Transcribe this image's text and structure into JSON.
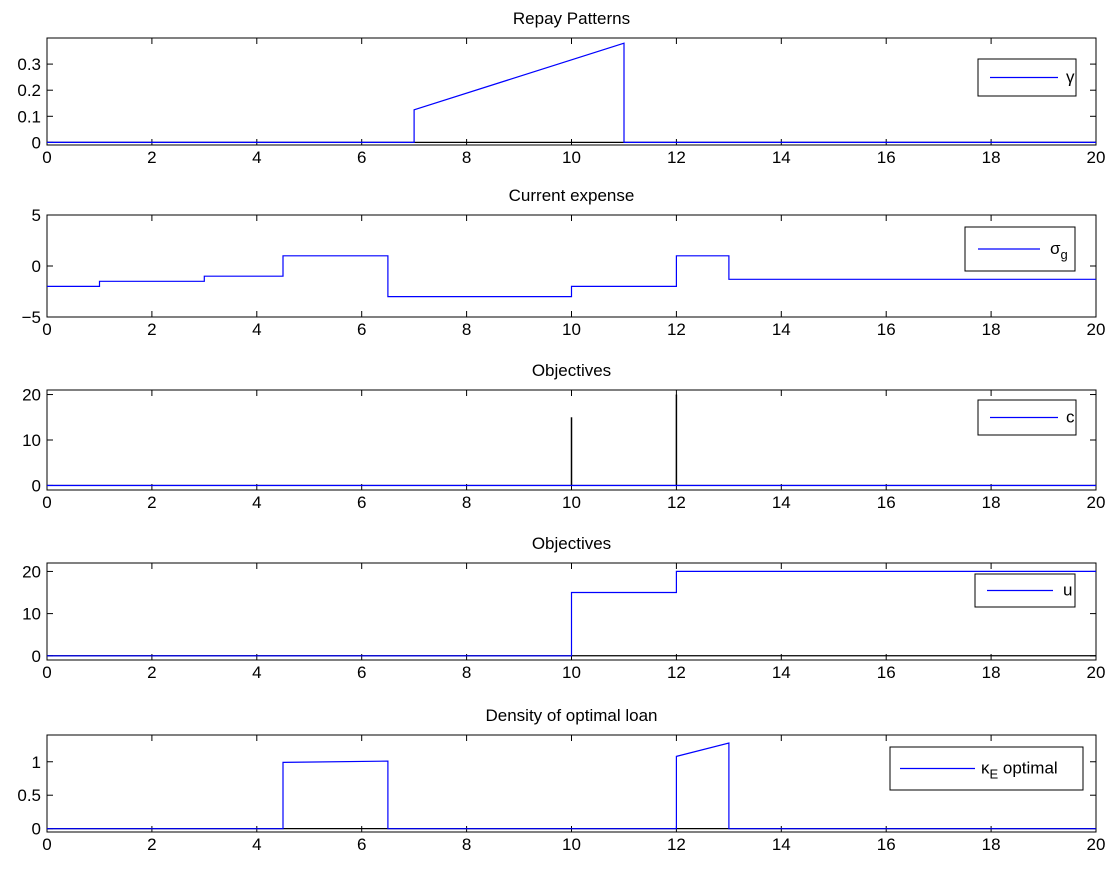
{
  "chart_data": [
    {
      "type": "line",
      "title": "Repay Patterns",
      "xlim": [
        0,
        20
      ],
      "ylim": [
        -0.01,
        0.4
      ],
      "xticks": [
        "0",
        "2",
        "4",
        "6",
        "8",
        "10",
        "12",
        "14",
        "16",
        "18",
        "20"
      ],
      "yticks": [
        {
          "value": 0,
          "label": "0"
        },
        {
          "value": 0.1,
          "label": "0.1"
        },
        {
          "value": 0.2,
          "label": "0.2"
        },
        {
          "value": 0.3,
          "label": "0.3"
        }
      ],
      "legend_position": "right",
      "baseline": 0,
      "series": [
        {
          "name": "γ",
          "color": "#0000ff",
          "points": [
            [
              0,
              0
            ],
            [
              7,
              0
            ],
            [
              7,
              0.125
            ],
            [
              11,
              0.38
            ],
            [
              11,
              0
            ],
            [
              20,
              0
            ]
          ]
        }
      ]
    },
    {
      "type": "line",
      "title": "Current expense",
      "xlim": [
        0,
        20
      ],
      "ylim": [
        -5,
        5
      ],
      "xticks": [
        "0",
        "2",
        "4",
        "6",
        "8",
        "10",
        "12",
        "14",
        "16",
        "18",
        "20"
      ],
      "yticks": [
        {
          "value": -5,
          "label": "−5"
        },
        {
          "value": 0,
          "label": "0"
        },
        {
          "value": 5,
          "label": "5"
        }
      ],
      "legend_position": "right",
      "series": [
        {
          "name": "σ",
          "name_sub": "g",
          "color": "#0000ff",
          "points": [
            [
              0,
              -2
            ],
            [
              1,
              -2
            ],
            [
              1,
              -1.5
            ],
            [
              3,
              -1.5
            ],
            [
              3,
              -1
            ],
            [
              4.5,
              -1
            ],
            [
              4.5,
              1
            ],
            [
              6.5,
              1
            ],
            [
              6.5,
              -3
            ],
            [
              10,
              -3
            ],
            [
              10,
              -2
            ],
            [
              12,
              -2
            ],
            [
              12,
              1
            ],
            [
              13,
              1
            ],
            [
              13,
              -1.3
            ],
            [
              20,
              -1.3
            ]
          ]
        }
      ]
    },
    {
      "type": "line",
      "title": "Objectives",
      "xlim": [
        0,
        20
      ],
      "ylim": [
        -1,
        21
      ],
      "xticks": [
        "0",
        "2",
        "4",
        "6",
        "8",
        "10",
        "12",
        "14",
        "16",
        "18",
        "20"
      ],
      "yticks": [
        {
          "value": 0,
          "label": "0"
        },
        {
          "value": 10,
          "label": "10"
        },
        {
          "value": 20,
          "label": "20"
        }
      ],
      "legend_position": "right",
      "baseline": 0,
      "series": [
        {
          "name": "c",
          "color": "#0000ff",
          "points": [
            [
              0,
              0
            ],
            [
              20,
              0
            ]
          ]
        }
      ],
      "stems": [
        {
          "x": 10,
          "y": 15,
          "color": "#000000"
        },
        {
          "x": 12,
          "y": 20,
          "color": "#000000"
        }
      ]
    },
    {
      "type": "line",
      "title": "Objectives",
      "xlim": [
        0,
        20
      ],
      "ylim": [
        -1,
        22
      ],
      "xticks": [
        "0",
        "2",
        "4",
        "6",
        "8",
        "10",
        "12",
        "14",
        "16",
        "18",
        "20"
      ],
      "yticks": [
        {
          "value": 0,
          "label": "0"
        },
        {
          "value": 10,
          "label": "10"
        },
        {
          "value": 20,
          "label": "20"
        }
      ],
      "legend_position": "right",
      "baseline": 0,
      "series": [
        {
          "name": "u",
          "color": "#0000ff",
          "points": [
            [
              0,
              0
            ],
            [
              10,
              0
            ],
            [
              10,
              15
            ],
            [
              12,
              15
            ],
            [
              12,
              20
            ],
            [
              20,
              20
            ]
          ]
        }
      ]
    },
    {
      "type": "line",
      "title": "Density of optimal loan",
      "xlim": [
        0,
        20
      ],
      "ylim": [
        -0.05,
        1.4
      ],
      "xticks": [
        "0",
        "2",
        "4",
        "6",
        "8",
        "10",
        "12",
        "14",
        "16",
        "18",
        "20"
      ],
      "yticks": [
        {
          "value": 0,
          "label": "0"
        },
        {
          "value": 0.5,
          "label": "0.5"
        },
        {
          "value": 1,
          "label": "1"
        }
      ],
      "legend_position": "right",
      "baseline": 0,
      "series": [
        {
          "name": "κ",
          "name_sub": "E",
          "name_suffix": " optimal",
          "color": "#0000ff",
          "points": [
            [
              0,
              0
            ],
            [
              4.5,
              0
            ],
            [
              4.5,
              0.99
            ],
            [
              6.5,
              1.01
            ],
            [
              6.5,
              0
            ],
            [
              12,
              0
            ],
            [
              12,
              1.08
            ],
            [
              13,
              1.28
            ],
            [
              13,
              0
            ],
            [
              20,
              0
            ]
          ]
        }
      ]
    }
  ]
}
